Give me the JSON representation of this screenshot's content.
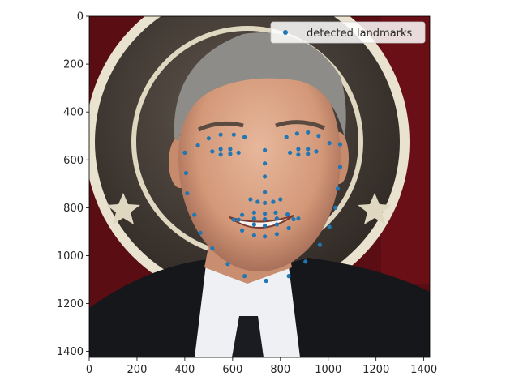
{
  "chart_data": {
    "type": "scatter",
    "title": "",
    "xlabel": "",
    "ylabel": "",
    "image_background": "photo of a smiling grey-haired man in a dark suit and tie in front of a Screen Actors Guild logo",
    "xlim": [
      0,
      1425
    ],
    "ylim": [
      1425,
      0
    ],
    "y_inverted": true,
    "xticks": [
      "0",
      "200",
      "400",
      "600",
      "800",
      "1000",
      "1200",
      "1400"
    ],
    "yticks": [
      "0",
      "200",
      "400",
      "600",
      "800",
      "1000",
      "1200",
      "1400"
    ],
    "legend": {
      "placement": "top-right",
      "entries": [
        "detected landmarks"
      ]
    },
    "series": [
      {
        "name": "detected landmarks",
        "color": "#1f77b4",
        "points": [
          {
            "x": 400,
            "y": 570
          },
          {
            "x": 405,
            "y": 655
          },
          {
            "x": 410,
            "y": 740
          },
          {
            "x": 440,
            "y": 830
          },
          {
            "x": 465,
            "y": 905
          },
          {
            "x": 515,
            "y": 970
          },
          {
            "x": 580,
            "y": 1035
          },
          {
            "x": 650,
            "y": 1085
          },
          {
            "x": 740,
            "y": 1105
          },
          {
            "x": 835,
            "y": 1085
          },
          {
            "x": 905,
            "y": 1025
          },
          {
            "x": 965,
            "y": 955
          },
          {
            "x": 1005,
            "y": 880
          },
          {
            "x": 1030,
            "y": 800
          },
          {
            "x": 1040,
            "y": 720
          },
          {
            "x": 1050,
            "y": 630
          },
          {
            "x": 1050,
            "y": 535
          },
          {
            "x": 455,
            "y": 540
          },
          {
            "x": 500,
            "y": 510
          },
          {
            "x": 550,
            "y": 495
          },
          {
            "x": 605,
            "y": 495
          },
          {
            "x": 650,
            "y": 505
          },
          {
            "x": 825,
            "y": 505
          },
          {
            "x": 870,
            "y": 490
          },
          {
            "x": 915,
            "y": 485
          },
          {
            "x": 960,
            "y": 500
          },
          {
            "x": 1005,
            "y": 530
          },
          {
            "x": 735,
            "y": 560
          },
          {
            "x": 735,
            "y": 615
          },
          {
            "x": 735,
            "y": 670
          },
          {
            "x": 735,
            "y": 735
          },
          {
            "x": 675,
            "y": 765
          },
          {
            "x": 705,
            "y": 775
          },
          {
            "x": 735,
            "y": 780
          },
          {
            "x": 770,
            "y": 775
          },
          {
            "x": 800,
            "y": 765
          },
          {
            "x": 515,
            "y": 565
          },
          {
            "x": 550,
            "y": 555
          },
          {
            "x": 590,
            "y": 555
          },
          {
            "x": 625,
            "y": 570
          },
          {
            "x": 590,
            "y": 575
          },
          {
            "x": 550,
            "y": 578
          },
          {
            "x": 840,
            "y": 570
          },
          {
            "x": 875,
            "y": 555
          },
          {
            "x": 915,
            "y": 555
          },
          {
            "x": 950,
            "y": 565
          },
          {
            "x": 915,
            "y": 575
          },
          {
            "x": 875,
            "y": 578
          },
          {
            "x": 605,
            "y": 850
          },
          {
            "x": 640,
            "y": 830
          },
          {
            "x": 690,
            "y": 820
          },
          {
            "x": 735,
            "y": 825
          },
          {
            "x": 780,
            "y": 820
          },
          {
            "x": 830,
            "y": 828
          },
          {
            "x": 875,
            "y": 845
          },
          {
            "x": 835,
            "y": 885
          },
          {
            "x": 785,
            "y": 910
          },
          {
            "x": 735,
            "y": 920
          },
          {
            "x": 690,
            "y": 915
          },
          {
            "x": 640,
            "y": 895
          },
          {
            "x": 625,
            "y": 850
          },
          {
            "x": 690,
            "y": 845
          },
          {
            "x": 735,
            "y": 848
          },
          {
            "x": 785,
            "y": 845
          },
          {
            "x": 855,
            "y": 848
          },
          {
            "x": 785,
            "y": 870
          },
          {
            "x": 735,
            "y": 875
          },
          {
            "x": 690,
            "y": 870
          }
        ]
      }
    ]
  }
}
